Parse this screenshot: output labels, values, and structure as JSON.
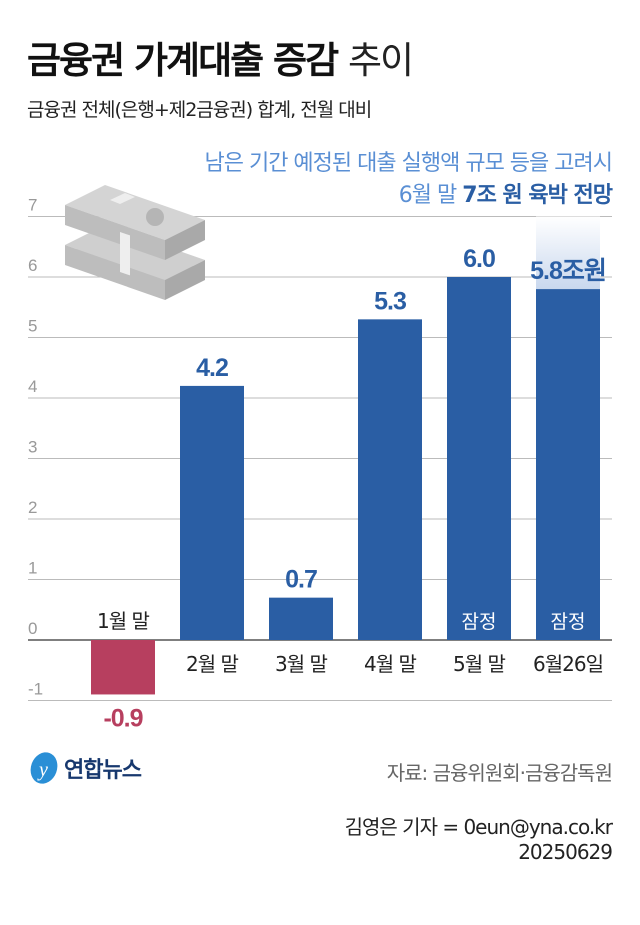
{
  "header": {
    "title_bold": "금융권 가계대출 증감",
    "title_light": "추이",
    "subtitle": "금융권 전체(은행+제2금융권) 합계, 전월 대비"
  },
  "annotation": {
    "line1": "남은 기간 예정된 대출 실행액 규모 등을 고려시",
    "line2_prefix": "6월 말",
    "line2_bold": "7조 원 육박 전망"
  },
  "colors": {
    "positive": "#2a5ea4",
    "negative": "#b73f5f",
    "projection": "#c9d8ee",
    "grid": "#bbbbbb"
  },
  "chart_data": {
    "type": "bar",
    "unit": "조원",
    "ylim": [
      -1,
      7
    ],
    "yticks": [
      7,
      6,
      5,
      4,
      3,
      2,
      1,
      0,
      -1
    ],
    "grid": true,
    "categories": [
      "1월 말",
      "2월 말",
      "3월 말",
      "4월 말",
      "5월 말",
      "6월26일"
    ],
    "values": [
      -0.9,
      4.2,
      0.7,
      5.3,
      6.0,
      5.8
    ],
    "value_labels": [
      "-0.9",
      "4.2",
      "0.7",
      "5.3",
      "6.0",
      "5.8조원"
    ],
    "bar_notes": [
      "",
      "",
      "",
      "",
      "잠정",
      "잠정"
    ],
    "projection": {
      "category": "6월26일",
      "value": 7
    }
  },
  "footer": {
    "logo": "연합뉴스",
    "source": "자료: 금융위원회·금융감독원",
    "credit": "김영은 기자 = 0eun@yna.co.kr",
    "date": "20250629"
  },
  "icons": {
    "illustration": "money-stack-icon",
    "logo": "yonhap-logo-icon"
  }
}
